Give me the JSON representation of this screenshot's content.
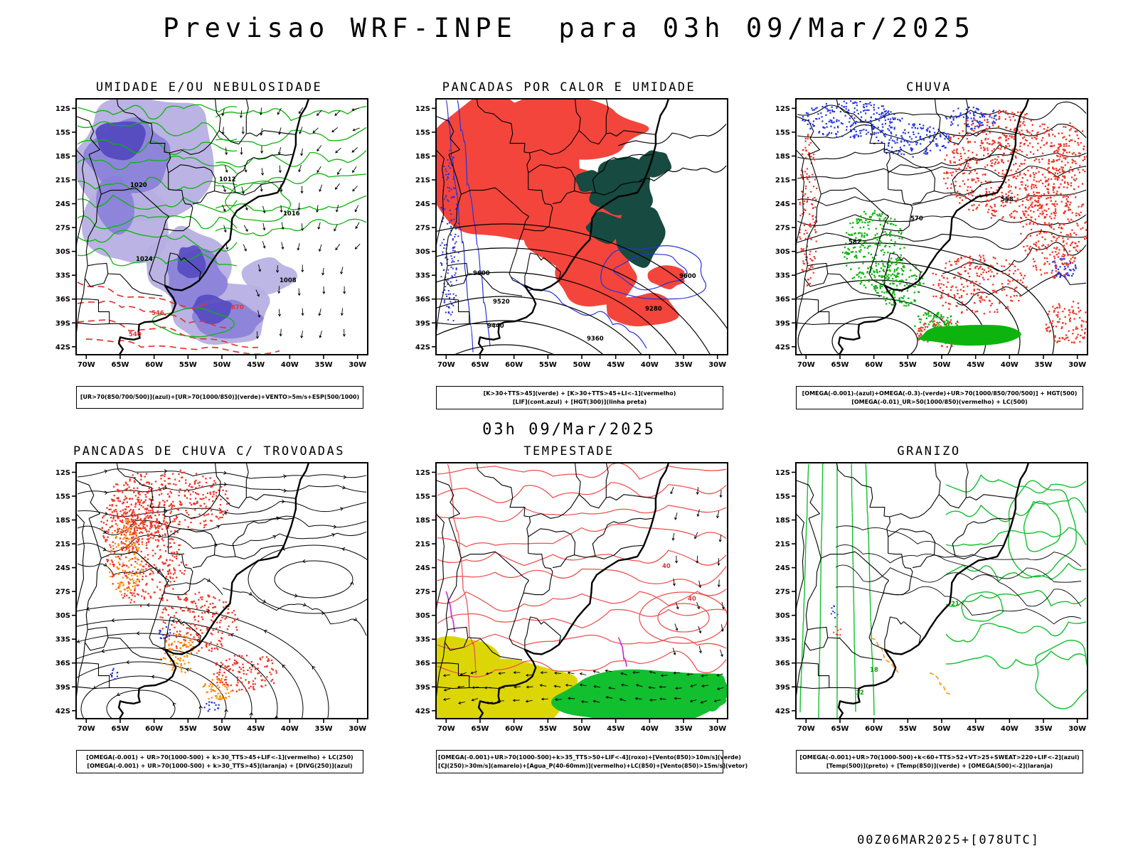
{
  "page": {
    "title": "Previsao WRF-INPE  para 03h 09/Mar/2025",
    "valid_time_label": "03h 09/Mar/2025",
    "run_label": "00Z06MAR2025+[078UTC]"
  },
  "axes": {
    "lat": [
      "12S",
      "15S",
      "18S",
      "21S",
      "24S",
      "27S",
      "30S",
      "33S",
      "36S",
      "39S",
      "42S"
    ],
    "lon": [
      "70W",
      "65W",
      "60W",
      "55W",
      "50W",
      "45W",
      "40W",
      "35W",
      "30W"
    ]
  },
  "palette": {
    "green": "#0db40d",
    "red": "#ee3626",
    "scarlet_fill": "#f3453c",
    "dark_teal": "#174a40",
    "blue": "#2236e0",
    "contour_blue": "#2733d9",
    "lavender": "#b6afe2",
    "purple_mid": "#8a80d8",
    "purple_deep": "#544ac0",
    "orange": "#ff8f05",
    "yellow": "#ddd606",
    "green_fill": "#12bf2e",
    "red_contour": "#ef4f4f",
    "magenta": "#c22ad2",
    "black": "#000000"
  },
  "panels": [
    {
      "id": "umidade",
      "title": "UMIDADE E/OU NEBULOSIDADE",
      "caption_lines": [
        "[UR>70(850/700/500)](azul)+[UR>70(1000/850)](verde)+VENTO>5m/s+ESP(500/1000)"
      ],
      "map_labels": [
        {
          "text": "1012",
          "color": "#000000"
        },
        {
          "text": "1016",
          "color": "#000000"
        },
        {
          "text": "1020",
          "color": "#000000"
        },
        {
          "text": "1024",
          "color": "#000000"
        },
        {
          "text": "1008",
          "color": "#000000"
        },
        {
          "text": "546",
          "color": "#e23333"
        },
        {
          "text": "540",
          "color": "#e23333"
        },
        {
          "text": "870",
          "color": "#e23333"
        }
      ]
    },
    {
      "id": "pancadas_calor",
      "title": "PANCADAS POR CALOR E UMIDADE",
      "caption_lines": [
        "[K>30+TTS>45](verde) + [K>30+TTS>45+LI<-1](vermelho)",
        "[LIF](cont.azul) + [HGT(300)](linha preta)"
      ],
      "map_labels": [
        {
          "text": "9600",
          "color": "#000000"
        },
        {
          "text": "9520",
          "color": "#000000"
        },
        {
          "text": "9440",
          "color": "#000000"
        },
        {
          "text": "9360",
          "color": "#000000"
        },
        {
          "text": "9280",
          "color": "#000000"
        },
        {
          "text": "9600",
          "color": "#000000"
        }
      ]
    },
    {
      "id": "chuva",
      "title": "CHUVA",
      "caption_lines": [
        "[OMEGA(-0.001)-(azul)+OMEGA(-0.3)-(verde)+UR>70(1000/850/700/500)] + HGT(500)",
        "[OMEGA(-0.01)_UR>50(1000/850)(vermelho) + LC(500)"
      ],
      "map_labels": [
        {
          "text": "582",
          "color": "#000000"
        },
        {
          "text": "570",
          "color": "#000000"
        },
        {
          "text": "558",
          "color": "#000000"
        }
      ]
    },
    {
      "id": "trovoadas",
      "title": "PANCADAS DE CHUVA C/ TROVOADAS",
      "caption_lines": [
        "[OMEGA(-0.001) + UR>70(1000-500) + k>30_TTS>45+LIF<-1](vermelho) + LC(250)",
        "[OMEGA(-0.001) + UR>70(1000-500) + k>30_TTS>45](laranja) + [DIVG(250)](azul)"
      ],
      "map_labels": []
    },
    {
      "id": "tempestade",
      "title": "TEMPESTADE",
      "caption_lines": [
        "[OMEGA(-0.001)+UR>70(1000-500)+k>35_TTS>50+LIF<-4](roxo)+[Vento(850)>10m/s](verde)",
        "[CJ(250)>30m/s](amarelo)+[Agua_P(40-60mm)](vermelho)+LC(850)+[Vento(850)>15m/s](vetor)"
      ],
      "map_labels": [
        {
          "text": "40",
          "color": "#e23333"
        },
        {
          "text": "40",
          "color": "#e23333"
        }
      ]
    },
    {
      "id": "granizo",
      "title": "GRANIZO",
      "caption_lines": [
        "[OMEGA(-0.001)+UR>70(1000-500)+k<60+TTS>52+VT>25+SWEAT>220+LIF<-2](azul)",
        "[Temp(500)](preto) + [Temp(850)](verde) + [OMEGA(500)<-2](laranja)"
      ],
      "map_labels": [
        {
          "text": "12",
          "color": "#0a9c0a"
        },
        {
          "text": "18",
          "color": "#0a9c0a"
        },
        {
          "text": "21",
          "color": "#0a9c0a"
        }
      ]
    }
  ]
}
